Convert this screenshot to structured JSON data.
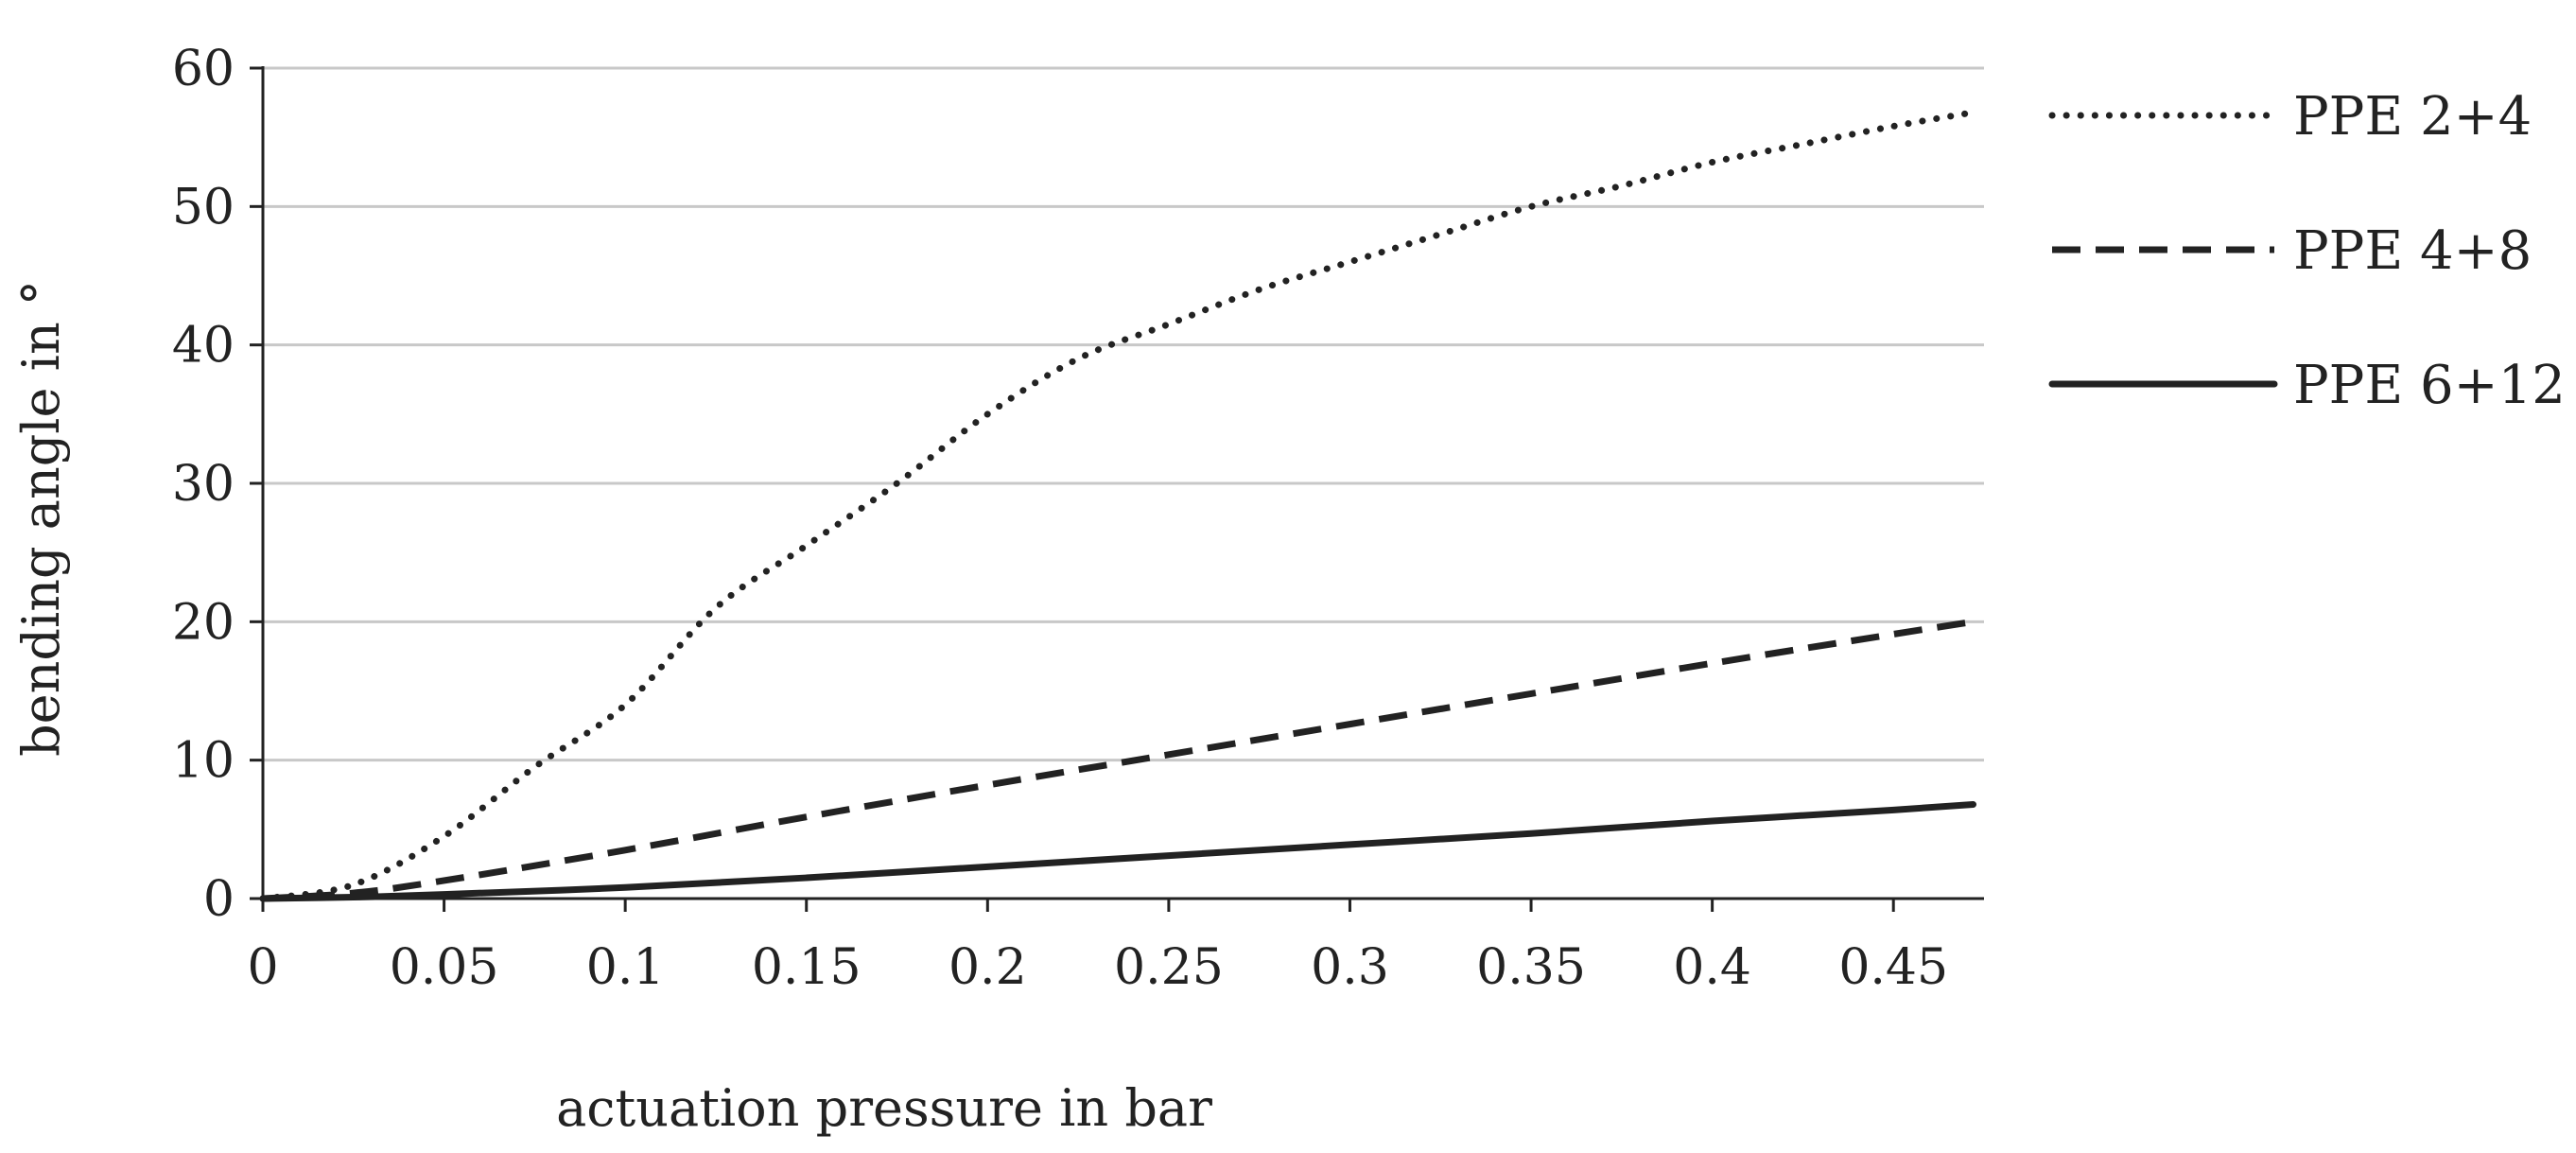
{
  "chart_data": {
    "type": "line",
    "title": "",
    "xlabel": "actuation pressure in bar",
    "ylabel": "bending angle in °",
    "xlim": [
      0,
      0.475
    ],
    "ylim": [
      0,
      60
    ],
    "xticks": [
      0,
      0.05,
      0.1,
      0.15,
      0.2,
      0.25,
      0.3,
      0.35,
      0.4,
      0.45
    ],
    "xtick_labels": [
      "0",
      "0.05",
      "0.1",
      "0.15",
      "0.2",
      "0.25",
      "0.3",
      "0.35",
      "0.4",
      "0.45"
    ],
    "yticks": [
      0,
      10,
      20,
      30,
      40,
      50,
      60
    ],
    "ytick_labels": [
      "0",
      "10",
      "20",
      "30",
      "40",
      "50",
      "60"
    ],
    "grid": "horizontal",
    "legend_position": "right",
    "series": [
      {
        "name": "PPE 2+4",
        "style": "dotted",
        "color": "#222222",
        "x": [
          0,
          0.025,
          0.05,
          0.075,
          0.1,
          0.125,
          0.15,
          0.175,
          0.2,
          0.225,
          0.25,
          0.275,
          0.3,
          0.325,
          0.35,
          0.375,
          0.4,
          0.425,
          0.45,
          0.472
        ],
        "y": [
          0,
          1,
          4.5,
          9.5,
          14,
          21,
          25.5,
          30,
          35,
          39,
          41.5,
          44,
          46,
          48,
          50,
          51.5,
          53.2,
          54.5,
          55.8,
          56.8
        ]
      },
      {
        "name": "PPE 4+8",
        "style": "dashed",
        "color": "#222222",
        "x": [
          0,
          0.025,
          0.05,
          0.1,
          0.15,
          0.2,
          0.25,
          0.3,
          0.35,
          0.4,
          0.45,
          0.472
        ],
        "y": [
          0,
          0.4,
          1.3,
          3.5,
          5.9,
          8.2,
          10.4,
          12.6,
          14.8,
          17,
          19.1,
          20
        ]
      },
      {
        "name": "PPE 6+12",
        "style": "solid",
        "color": "#222222",
        "x": [
          0,
          0.025,
          0.05,
          0.1,
          0.15,
          0.2,
          0.25,
          0.3,
          0.35,
          0.4,
          0.45,
          0.472
        ],
        "y": [
          0,
          0.1,
          0.3,
          0.8,
          1.5,
          2.3,
          3.1,
          3.9,
          4.7,
          5.6,
          6.4,
          6.8
        ]
      }
    ]
  }
}
